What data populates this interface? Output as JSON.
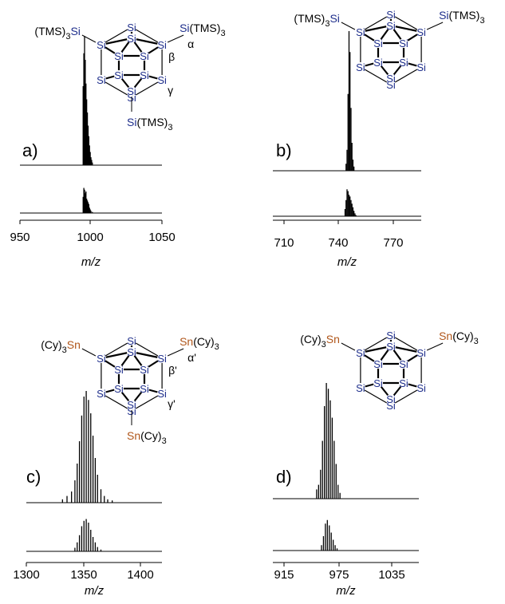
{
  "colors": {
    "si": "#1f2f8c",
    "sn": "#b0561a",
    "ink": "#000000"
  },
  "chart_data": [
    {
      "type": "line",
      "panel_label": "a)",
      "xlabel": "m/z",
      "xlim": [
        950,
        1050
      ],
      "xticks": [
        "950",
        "1000",
        "1050"
      ],
      "series": [
        {
          "peaks": [
            [
              994.5,
              0.6
            ],
            [
              995.0,
              0.85
            ],
            [
              995.5,
              0.98
            ],
            [
              996.0,
              0.8
            ],
            [
              996.5,
              0.62
            ],
            [
              997.0,
              0.5
            ],
            [
              997.5,
              0.4
            ],
            [
              998.0,
              0.3
            ],
            [
              998.5,
              0.22
            ],
            [
              999.0,
              0.15
            ],
            [
              999.5,
              0.1
            ],
            [
              1000.0,
              0.06
            ],
            [
              1000.5,
              0.04
            ],
            [
              1001.0,
              0.02
            ]
          ]
        },
        {
          "peaks": [
            [
              994.5,
              0.45
            ],
            [
              995.0,
              0.7
            ],
            [
              995.5,
              0.65
            ],
            [
              996.0,
              0.55
            ],
            [
              996.5,
              0.6
            ],
            [
              997.0,
              0.4
            ],
            [
              997.5,
              0.35
            ],
            [
              998.0,
              0.3
            ],
            [
              998.5,
              0.25
            ],
            [
              999.0,
              0.15
            ],
            [
              999.5,
              0.1
            ],
            [
              1000.0,
              0.06
            ],
            [
              1001.0,
              0.03
            ]
          ]
        }
      ],
      "structure": {
        "shape": "icosahedral",
        "element": "Si",
        "substituent_element": "Si",
        "substituent_group": "(TMS)",
        "substituent_subscript": "3",
        "substituents": [
          "left",
          "right",
          "bottom"
        ],
        "greek_labels": [
          "α",
          "β",
          "γ"
        ]
      }
    },
    {
      "type": "line",
      "panel_label": "b)",
      "xlabel": "m/z",
      "xlim": [
        710,
        785
      ],
      "xticks": [
        "710",
        "740",
        "770"
      ],
      "series": [
        {
          "peaks": [
            [
              747.0,
              0.05
            ],
            [
              747.5,
              0.15
            ],
            [
              748.0,
              0.55
            ],
            [
              748.5,
              1.0
            ],
            [
              749.0,
              0.85
            ],
            [
              749.5,
              0.45
            ],
            [
              750.0,
              0.2
            ],
            [
              750.5,
              0.08
            ],
            [
              751.0,
              0.03
            ]
          ]
        },
        {
          "peaks": [
            [
              746.5,
              0.2
            ],
            [
              747.0,
              0.45
            ],
            [
              747.5,
              0.75
            ],
            [
              748.0,
              0.7
            ],
            [
              748.5,
              0.6
            ],
            [
              749.0,
              0.55
            ],
            [
              749.5,
              0.45
            ],
            [
              750.0,
              0.35
            ],
            [
              750.5,
              0.25
            ],
            [
              751.0,
              0.15
            ],
            [
              751.5,
              0.08
            ],
            [
              752.0,
              0.03
            ]
          ]
        }
      ],
      "structure": {
        "shape": "icosahedral",
        "element": "Si",
        "substituent_element": "Si",
        "substituent_group": "(TMS)",
        "substituent_subscript": "3",
        "substituents": [
          "left",
          "right"
        ],
        "greek_labels": []
      }
    },
    {
      "type": "line",
      "panel_label": "c)",
      "xlabel": "m/z",
      "xlim": [
        1300,
        1420
      ],
      "xticks": [
        "1300",
        "1350",
        "1400"
      ],
      "series": [
        {
          "peaks": [
            [
              1332,
              0.03
            ],
            [
              1336,
              0.06
            ],
            [
              1340,
              0.1
            ],
            [
              1343,
              0.2
            ],
            [
              1345,
              0.35
            ],
            [
              1347,
              0.55
            ],
            [
              1349,
              0.78
            ],
            [
              1351,
              0.95
            ],
            [
              1353,
              1.0
            ],
            [
              1355,
              0.92
            ],
            [
              1357,
              0.8
            ],
            [
              1359,
              0.6
            ],
            [
              1361,
              0.4
            ],
            [
              1363,
              0.25
            ],
            [
              1366,
              0.12
            ],
            [
              1369,
              0.06
            ],
            [
              1372,
              0.03
            ],
            [
              1376,
              0.02
            ]
          ]
        },
        {
          "peaks": [
            [
              1343,
              0.1
            ],
            [
              1345,
              0.25
            ],
            [
              1347,
              0.45
            ],
            [
              1349,
              0.7
            ],
            [
              1351,
              0.85
            ],
            [
              1353,
              0.9
            ],
            [
              1355,
              0.8
            ],
            [
              1357,
              0.6
            ],
            [
              1359,
              0.4
            ],
            [
              1361,
              0.25
            ],
            [
              1363,
              0.12
            ],
            [
              1366,
              0.05
            ]
          ]
        }
      ],
      "structure": {
        "shape": "icosahedral",
        "element": "Si",
        "substituent_element": "Sn",
        "substituent_group": "(Cy)",
        "substituent_subscript": "3",
        "substituents": [
          "left",
          "right",
          "bottom"
        ],
        "greek_labels": [
          "α'",
          "β'",
          "γ'"
        ]
      }
    },
    {
      "type": "line",
      "panel_label": "d)",
      "xlabel": "m/z",
      "xlim": [
        915,
        1065
      ],
      "xticks": [
        "915",
        "975",
        "1035"
      ],
      "series": [
        {
          "peaks": [
            [
              960,
              0.08
            ],
            [
              962,
              0.12
            ],
            [
              964,
              0.25
            ],
            [
              966,
              0.5
            ],
            [
              968,
              0.8
            ],
            [
              970,
              1.0
            ],
            [
              972,
              0.95
            ],
            [
              974,
              0.85
            ],
            [
              976,
              0.7
            ],
            [
              978,
              0.5
            ],
            [
              980,
              0.3
            ],
            [
              982,
              0.12
            ],
            [
              984,
              0.05
            ]
          ]
        },
        {
          "peaks": [
            [
              965,
              0.15
            ],
            [
              967,
              0.4
            ],
            [
              969,
              0.75
            ],
            [
              971,
              0.85
            ],
            [
              973,
              0.7
            ],
            [
              975,
              0.5
            ],
            [
              977,
              0.3
            ],
            [
              979,
              0.15
            ],
            [
              981,
              0.06
            ]
          ]
        }
      ],
      "structure": {
        "shape": "icosahedral",
        "element": "Si",
        "substituent_element": "Sn",
        "substituent_group": "(Cy)",
        "substituent_subscript": "3",
        "substituents": [
          "left",
          "right"
        ],
        "greek_labels": []
      }
    }
  ]
}
